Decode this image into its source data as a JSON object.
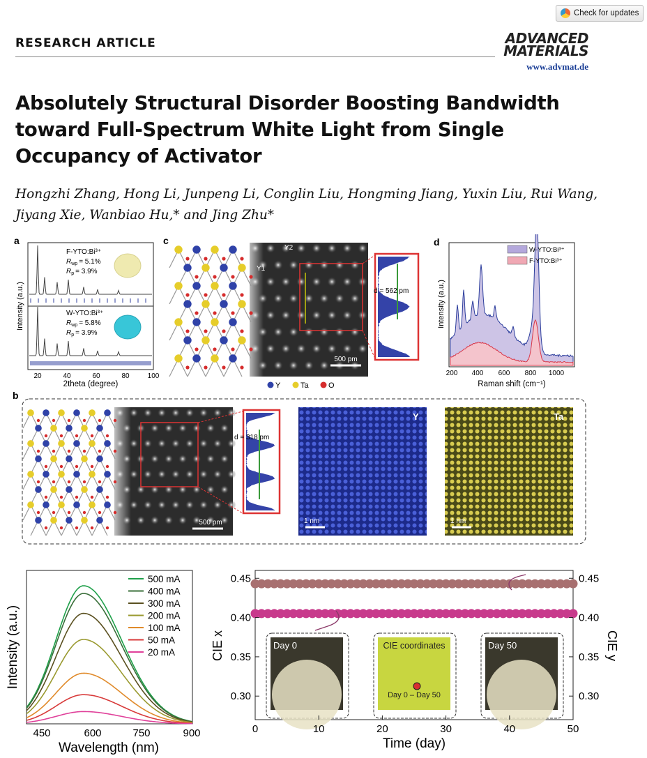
{
  "header": {
    "check_updates": "Check for updates",
    "section": "RESEARCH ARTICLE",
    "journal_line1": "ADVANCED",
    "journal_line2": "MATERIALS",
    "journal_url": "www.advmat.de"
  },
  "article": {
    "title": "Absolutely Structural Disorder Boosting Bandwidth toward Full-Spectrum White Light from Single Occupancy of Activator",
    "authors_line1": "Hongzhi Zhang, Hong Li, Junpeng Li, Conglin Liu, Hongming Jiang, Yuxin Liu, Rui Wang,",
    "authors_line2": "Jiyang Xie, Wanbiao Hu,* and Jing Zhu*"
  },
  "figure": {
    "panel_a": {
      "label": "a",
      "top_sample": "F-YTO:Bi³⁺",
      "top_rwp": "= 5.1%",
      "top_rp": "= 3.9%",
      "bottom_sample": "W-YTO:Bi³⁺",
      "bottom_rwp": "= 5.8%",
      "bottom_rp": "= 3.9%",
      "rwp_label": "R",
      "rwp_sub": "wp",
      "rp_sub": "p",
      "ylabel": "Intensity (a.u.)",
      "xlabel": "2theta (degree)",
      "xticks": [
        "20",
        "40",
        "60",
        "80",
        "100"
      ]
    },
    "panel_c": {
      "label": "c",
      "y2": "Y2",
      "y1": "Y1",
      "d_label": "d = 562 pm",
      "scale": "500 pm",
      "legend": [
        "Y",
        "Ta",
        "O"
      ]
    },
    "panel_d": {
      "label": "d",
      "legend": [
        "W-YTO:Bi³⁺",
        "F-YTO:Bi³⁺"
      ],
      "ylabel": "Intensity (a.u.)",
      "xlabel": "Raman shift (cm⁻¹)",
      "xticks": [
        "200",
        "400",
        "600",
        "800",
        "1000"
      ]
    },
    "panel_b": {
      "label": "b",
      "d_label": "d = 318 pm",
      "scale_stem": "500 pm",
      "scale_y": "1 nm",
      "scale_ta": "1 nm",
      "map_y": "Y",
      "map_ta": "Ta"
    },
    "panel_spectra": {
      "ylabel": "Intensity (a.u.)",
      "xlabel": "Wavelength (nm)",
      "xticks": [
        "450",
        "600",
        "750",
        "900"
      ]
    },
    "panel_cie": {
      "ylabel_left": "CIE x",
      "ylabel_right": "CIE y",
      "xlabel": "Time (day)",
      "xticks": [
        "0",
        "10",
        "20",
        "30",
        "40",
        "50"
      ],
      "yticks": [
        "0.30",
        "0.35",
        "0.40",
        "0.45"
      ],
      "inset_day0": "Day 0",
      "inset_cie": "CIE coordinates",
      "inset_cie_sub": "Day 0 – Day 50",
      "inset_day50": "Day 50"
    }
  },
  "chart_data": [
    {
      "type": "line",
      "title": "",
      "xlabel": "Wavelength (nm)",
      "ylabel": "Intensity (a.u.)",
      "xlim": [
        420,
        900
      ],
      "peak_x": 585,
      "series": [
        {
          "name": "500 mA",
          "color": "#1fa04a",
          "peak": 0.9
        },
        {
          "name": "400 mA",
          "color": "#3a6f3a",
          "peak": 0.85
        },
        {
          "name": "300 mA",
          "color": "#5a5020",
          "peak": 0.72
        },
        {
          "name": "200 mA",
          "color": "#9a9a30",
          "peak": 0.55
        },
        {
          "name": "100 mA",
          "color": "#e08a2a",
          "peak": 0.33
        },
        {
          "name": "50 mA",
          "color": "#d83a3a",
          "peak": 0.19
        },
        {
          "name": "20 mA",
          "color": "#e0409a",
          "peak": 0.08
        }
      ]
    },
    {
      "type": "scatter",
      "title": "",
      "xlabel": "Time (day)",
      "ylabel": "CIE x",
      "ylabel_right": "CIE y",
      "xlim": [
        0,
        50
      ],
      "ylim": [
        0.27,
        0.46
      ],
      "series": [
        {
          "name": "CIE y",
          "color": "#a87070",
          "value": 0.443
        },
        {
          "name": "CIE x",
          "color": "#c83a8c",
          "value": 0.405
        }
      ]
    }
  ]
}
